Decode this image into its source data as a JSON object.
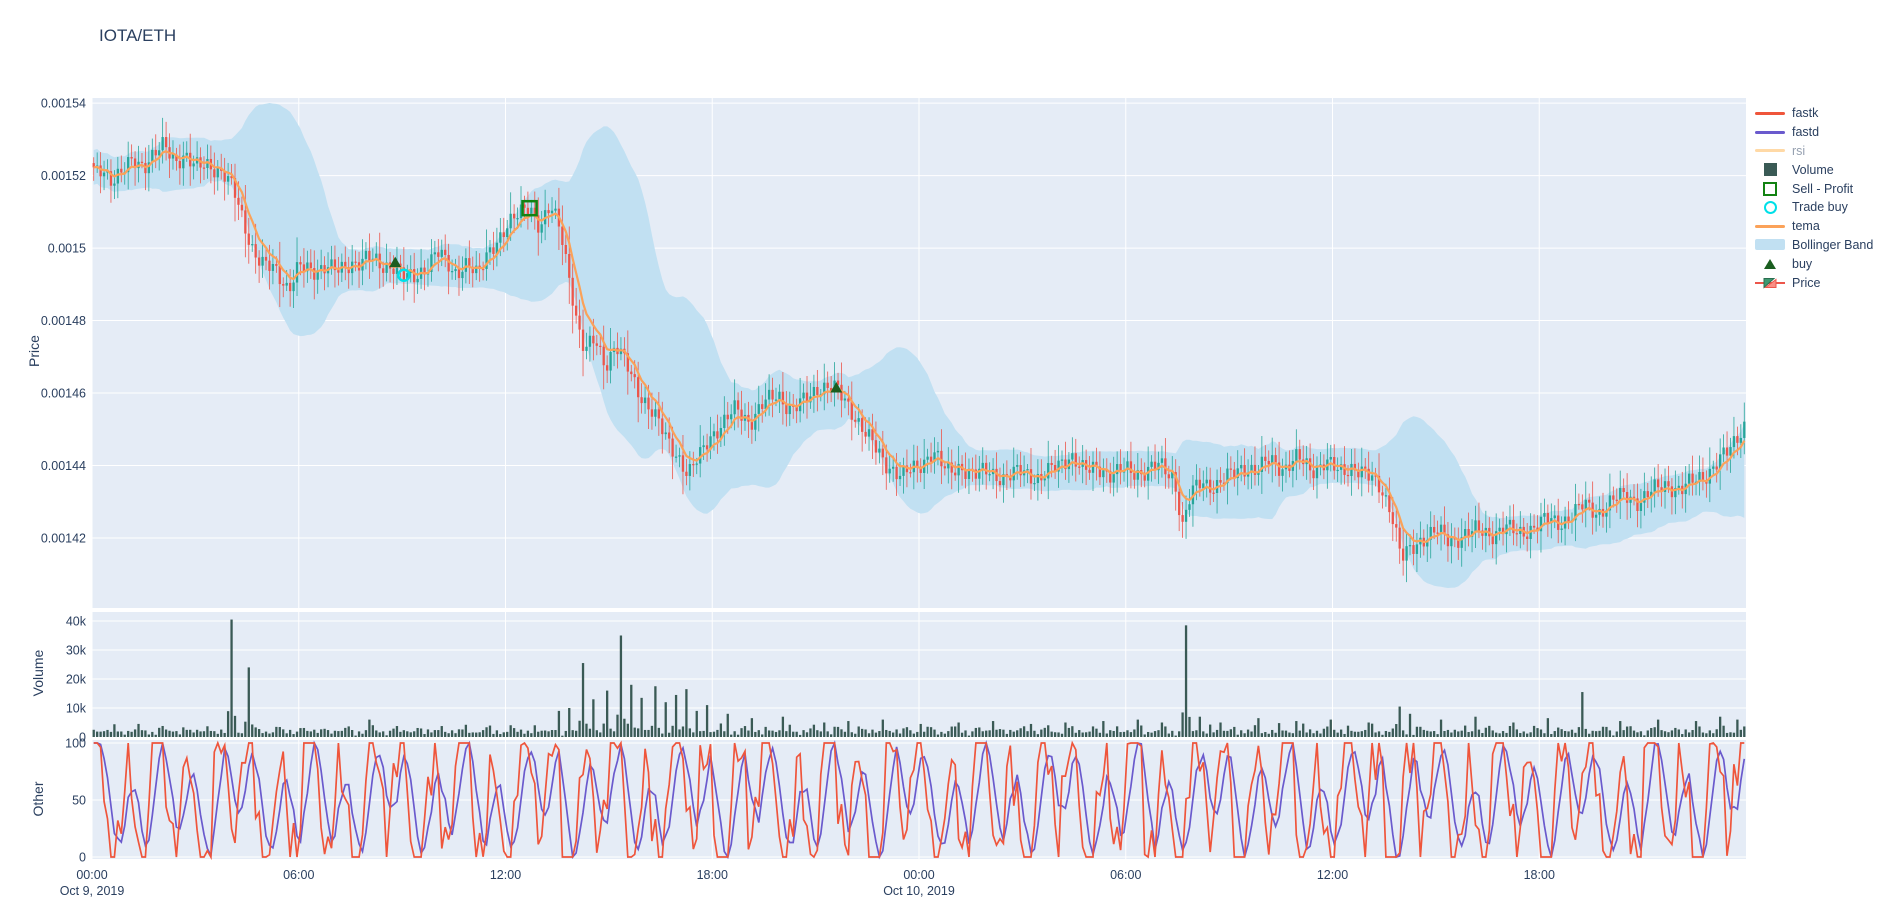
{
  "title": "IOTA/ETH",
  "colors": {
    "paper": "#ffffff",
    "plot_bg": "#e5ecf6",
    "grid": "#ffffff",
    "text": "#2a3f5f",
    "muted_text": "rgba(42,63,95,0.5)",
    "fastk": "#ef553b",
    "fastd": "#6a5acd",
    "rsi": "#ffd9a6",
    "tema": "#fba259",
    "bollinger": "#c1e0f2",
    "volume_bar": "#3a5a55",
    "candle_up": "#26a69a",
    "candle_down": "#ec564b",
    "sell_profit": "#128312",
    "trade_buy": "#00e0e8",
    "buy": "#1b5e20"
  },
  "legend": {
    "items": [
      {
        "id": "fastk",
        "label": "fastk",
        "type": "line",
        "color": "#ef553b",
        "muted": false
      },
      {
        "id": "fastd",
        "label": "fastd",
        "type": "line",
        "color": "#6a5acd",
        "muted": false
      },
      {
        "id": "rsi",
        "label": "rsi",
        "type": "line",
        "color": "#ffd9a6",
        "muted": true
      },
      {
        "id": "volume",
        "label": "Volume",
        "type": "square",
        "color": "#3a5a55",
        "muted": false
      },
      {
        "id": "sell-profit",
        "label": "Sell - Profit",
        "type": "open-square",
        "color": "#128312",
        "muted": false
      },
      {
        "id": "trade-buy",
        "label": "Trade buy",
        "type": "open-circle",
        "color": "#00e0e8",
        "muted": false
      },
      {
        "id": "tema",
        "label": "tema",
        "type": "line",
        "color": "#fba259",
        "muted": false
      },
      {
        "id": "bollinger-band",
        "label": "Bollinger Band",
        "type": "band",
        "color": "#c1e0f2",
        "muted": false
      },
      {
        "id": "buy",
        "label": "buy",
        "type": "triangle",
        "color": "#1b5e20",
        "muted": false
      },
      {
        "id": "price",
        "label": "Price",
        "type": "candle",
        "color": "#3d9970",
        "muted": false
      }
    ]
  },
  "axes": {
    "x": {
      "ticks": [
        {
          "t": 0,
          "label": "00:00",
          "date": "Oct 9, 2019"
        },
        {
          "t": 6,
          "label": "06:00",
          "date": ""
        },
        {
          "t": 12,
          "label": "12:00",
          "date": ""
        },
        {
          "t": 18,
          "label": "18:00",
          "date": ""
        },
        {
          "t": 24,
          "label": "00:00",
          "date": "Oct 10, 2019"
        },
        {
          "t": 30,
          "label": "06:00",
          "date": ""
        },
        {
          "t": 36,
          "label": "12:00",
          "date": ""
        },
        {
          "t": 42,
          "label": "18:00",
          "date": ""
        }
      ]
    },
    "price": {
      "title": "Price",
      "ticks": [
        {
          "v": 0.00154,
          "label": "0.00154"
        },
        {
          "v": 0.00152,
          "label": "0.00152"
        },
        {
          "v": 0.0015,
          "label": "0.0015"
        },
        {
          "v": 0.00148,
          "label": "0.00148"
        },
        {
          "v": 0.00146,
          "label": "0.00146"
        },
        {
          "v": 0.00144,
          "label": "0.00144"
        },
        {
          "v": 0.00142,
          "label": "0.00142"
        }
      ]
    },
    "volume": {
      "title": "Volume",
      "ticks": [
        {
          "v": 40000,
          "label": "40k"
        },
        {
          "v": 30000,
          "label": "30k"
        },
        {
          "v": 20000,
          "label": "20k"
        },
        {
          "v": 10000,
          "label": "10k"
        },
        {
          "v": 0,
          "label": "0"
        }
      ]
    },
    "other": {
      "title": "Other",
      "ticks": [
        {
          "v": 100,
          "label": "100"
        },
        {
          "v": 50,
          "label": "50"
        },
        {
          "v": 0,
          "label": "0"
        }
      ]
    }
  },
  "chart_data": {
    "type": "candlestick",
    "x_start": "Oct 9, 2019 00:00",
    "x_range_hours": [
      0,
      48
    ],
    "price_axis_range": [
      0.0014007,
      0.0015414
    ],
    "volume_axis_range": [
      0,
      43100
    ],
    "other_axis_range": [
      0,
      100
    ],
    "series_names": [
      "Price",
      "tema",
      "Bollinger Band",
      "Volume",
      "fastk",
      "fastd",
      "rsi"
    ],
    "hidden_series": [
      "rsi"
    ],
    "price_keyframes": [
      [
        0,
        0.00152
      ],
      [
        0.3,
        0.001522
      ],
      [
        0.6,
        0.001519
      ],
      [
        0.9,
        0.001521
      ],
      [
        1.2,
        0.001524
      ],
      [
        1.5,
        0.001523
      ],
      [
        1.8,
        0.001526
      ],
      [
        2.1,
        0.001528
      ],
      [
        2.4,
        0.001524
      ],
      [
        2.7,
        0.001526
      ],
      [
        3.0,
        0.001522
      ],
      [
        3.4,
        0.001523
      ],
      [
        3.8,
        0.001521
      ],
      [
        4.1,
        0.001516
      ],
      [
        4.4,
        0.001507
      ],
      [
        4.7,
        0.001499
      ],
      [
        5.0,
        0.001495
      ],
      [
        5.3,
        0.001494
      ],
      [
        5.7,
        0.001489
      ],
      [
        6.0,
        0.001495
      ],
      [
        6.4,
        0.001493
      ],
      [
        6.8,
        0.001496
      ],
      [
        7.2,
        0.001493
      ],
      [
        7.6,
        0.001496
      ],
      [
        8.0,
        0.001498
      ],
      [
        8.4,
        0.001494
      ],
      [
        8.8,
        0.001496
      ],
      [
        9.1,
        0.001492
      ],
      [
        9.4,
        0.001491
      ],
      [
        9.7,
        0.001495
      ],
      [
        10.0,
        0.0015
      ],
      [
        10.5,
        0.001492
      ],
      [
        10.9,
        0.001497
      ],
      [
        11.2,
        0.001492
      ],
      [
        11.6,
        0.0015
      ],
      [
        12.0,
        0.001506
      ],
      [
        12.4,
        0.001509
      ],
      [
        12.7,
        0.001512
      ],
      [
        13.0,
        0.001506
      ],
      [
        13.3,
        0.001511
      ],
      [
        13.6,
        0.001505
      ],
      [
        13.9,
        0.00149
      ],
      [
        14.1,
        0.001478
      ],
      [
        14.3,
        0.001471
      ],
      [
        14.6,
        0.001475
      ],
      [
        14.9,
        0.001468
      ],
      [
        15.2,
        0.001473
      ],
      [
        15.6,
        0.001466
      ],
      [
        15.9,
        0.00146
      ],
      [
        16.3,
        0.001454
      ],
      [
        16.7,
        0.001447
      ],
      [
        17.0,
        0.001443
      ],
      [
        17.3,
        0.001437
      ],
      [
        17.6,
        0.001442
      ],
      [
        17.9,
        0.001448
      ],
      [
        18.3,
        0.001451
      ],
      [
        18.7,
        0.001456
      ],
      [
        19.1,
        0.001452
      ],
      [
        19.5,
        0.001457
      ],
      [
        19.9,
        0.00146
      ],
      [
        20.3,
        0.001455
      ],
      [
        20.7,
        0.001458
      ],
      [
        21.1,
        0.001462
      ],
      [
        21.6,
        0.001461
      ],
      [
        22.0,
        0.001456
      ],
      [
        22.5,
        0.001448
      ],
      [
        23.0,
        0.001441
      ],
      [
        23.5,
        0.001437
      ],
      [
        24.0,
        0.00144
      ],
      [
        24.4,
        0.001444
      ],
      [
        24.8,
        0.001438
      ],
      [
        25.2,
        0.00144
      ],
      [
        25.6,
        0.001437
      ],
      [
        26.0,
        0.001439
      ],
      [
        26.5,
        0.001436
      ],
      [
        27.0,
        0.001439
      ],
      [
        27.5,
        0.001436
      ],
      [
        28.0,
        0.00144
      ],
      [
        28.4,
        0.001443
      ],
      [
        28.8,
        0.001438
      ],
      [
        29.2,
        0.00144
      ],
      [
        29.6,
        0.001437
      ],
      [
        30.0,
        0.001439
      ],
      [
        30.5,
        0.001438
      ],
      [
        31.0,
        0.00144
      ],
      [
        31.4,
        0.001437
      ],
      [
        31.65,
        0.001423
      ],
      [
        31.9,
        0.001432
      ],
      [
        32.2,
        0.001436
      ],
      [
        32.6,
        0.001434
      ],
      [
        33.0,
        0.001437
      ],
      [
        33.4,
        0.00144
      ],
      [
        33.8,
        0.001438
      ],
      [
        34.2,
        0.001442
      ],
      [
        34.6,
        0.001439
      ],
      [
        35.0,
        0.001442
      ],
      [
        35.4,
        0.001439
      ],
      [
        35.8,
        0.001441
      ],
      [
        36.2,
        0.001438
      ],
      [
        36.6,
        0.00144
      ],
      [
        37.0,
        0.001437
      ],
      [
        37.4,
        0.001434
      ],
      [
        37.7,
        0.001428
      ],
      [
        38.0,
        0.001414
      ],
      [
        38.3,
        0.001417
      ],
      [
        38.6,
        0.00142
      ],
      [
        39.0,
        0.001422
      ],
      [
        39.4,
        0.001419
      ],
      [
        39.8,
        0.001421
      ],
      [
        40.2,
        0.001422
      ],
      [
        40.6,
        0.001421
      ],
      [
        41.0,
        0.001423
      ],
      [
        41.4,
        0.001421
      ],
      [
        41.8,
        0.001423
      ],
      [
        42.2,
        0.001425
      ],
      [
        42.6,
        0.001424
      ],
      [
        43.0,
        0.001427
      ],
      [
        43.3,
        0.001429
      ],
      [
        43.7,
        0.001427
      ],
      [
        44.1,
        0.00143
      ],
      [
        44.5,
        0.001432
      ],
      [
        44.9,
        0.00143
      ],
      [
        45.3,
        0.001433
      ],
      [
        45.7,
        0.001435
      ],
      [
        46.1,
        0.001433
      ],
      [
        46.5,
        0.001436
      ],
      [
        46.9,
        0.001438
      ],
      [
        47.2,
        0.001441
      ],
      [
        47.5,
        0.001444
      ],
      [
        47.8,
        0.001449
      ],
      [
        48,
        0.001452
      ]
    ],
    "volume_spikes": [
      [
        4.1,
        40500
      ],
      [
        4.5,
        24000
      ],
      [
        8.0,
        6000
      ],
      [
        13.5,
        9000
      ],
      [
        13.8,
        10000
      ],
      [
        14.2,
        25500
      ],
      [
        14.5,
        13000
      ],
      [
        14.9,
        16000
      ],
      [
        15.3,
        35000
      ],
      [
        15.6,
        18000
      ],
      [
        15.9,
        13500
      ],
      [
        16.3,
        17500
      ],
      [
        16.6,
        12000
      ],
      [
        16.9,
        14500
      ],
      [
        17.2,
        16500
      ],
      [
        17.5,
        9000
      ],
      [
        17.9,
        11000
      ],
      [
        18.4,
        8000
      ],
      [
        19.1,
        6500
      ],
      [
        20.0,
        7000
      ],
      [
        21.2,
        5000
      ],
      [
        21.9,
        5500
      ],
      [
        22.9,
        6000
      ],
      [
        24.0,
        4500
      ],
      [
        25.1,
        5000
      ],
      [
        26.1,
        5500
      ],
      [
        27.2,
        4500
      ],
      [
        28.2,
        5000
      ],
      [
        29.3,
        5500
      ],
      [
        30.3,
        6000
      ],
      [
        31.0,
        5000
      ],
      [
        31.7,
        38500
      ],
      [
        32.1,
        7000
      ],
      [
        32.8,
        5000
      ],
      [
        33.8,
        6500
      ],
      [
        34.9,
        5500
      ],
      [
        35.9,
        6000
      ],
      [
        37.0,
        5000
      ],
      [
        37.9,
        10500
      ],
      [
        38.2,
        8000
      ],
      [
        39.1,
        6000
      ],
      [
        40.1,
        7000
      ],
      [
        41.2,
        5000
      ],
      [
        42.2,
        6500
      ],
      [
        43.3,
        15500
      ],
      [
        44.4,
        5500
      ],
      [
        45.4,
        6000
      ],
      [
        46.5,
        5500
      ],
      [
        47.2,
        7000
      ],
      [
        47.7,
        6000
      ]
    ],
    "markers": {
      "buy": [
        [
          8.8,
          0.001496
        ],
        [
          21.6,
          0.0014614
        ]
      ],
      "trade_buy": [
        [
          9.05,
          0.0014925
        ]
      ],
      "sell_profit": [
        [
          12.7,
          0.001511
        ]
      ]
    }
  }
}
